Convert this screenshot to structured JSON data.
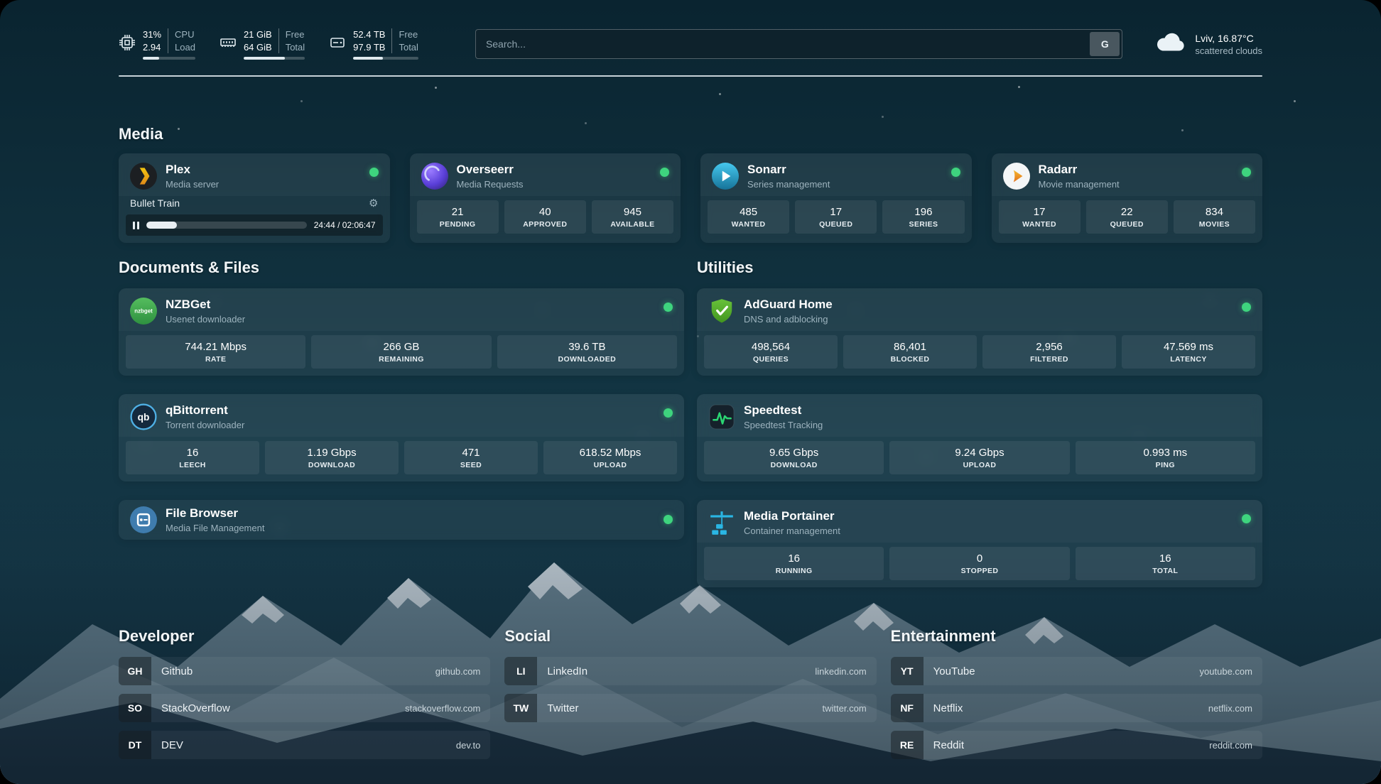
{
  "colors": {
    "status_green": "#3ed47e",
    "plex_orange": "#e5a00d",
    "overseerr_purple": "#5a3fd8",
    "sonarr_blue": "#35b5e0",
    "radarr_orange": "#e2711d",
    "nzbget_green": "#3fae4a",
    "qbittorrent_blue": "#4fb0e5",
    "adguard_green": "#68c23a",
    "speedtest_green": "#2bd673",
    "portainer_blue": "#2ab6e4"
  },
  "icons": {
    "topbar": [
      "cpu-icon",
      "ram-icon",
      "disk-icon",
      "cloud-icon"
    ],
    "apps": [
      "plex-icon",
      "overseerr-icon",
      "sonarr-icon",
      "radarr-icon",
      "nzbget-icon",
      "qbittorrent-icon",
      "filebrowser-icon",
      "adguard-icon",
      "speedtest-icon",
      "portainer-icon"
    ],
    "misc": [
      "gear-icon",
      "pause-icon",
      "status-dot"
    ]
  },
  "topbar": {
    "cpu": {
      "value_top": "31%",
      "value_bottom": "2.94",
      "label_top": "CPU",
      "label_bottom": "Load",
      "bar_percent": 31
    },
    "ram": {
      "value_top": "21 GiB",
      "value_bottom": "64 GiB",
      "label_top": "Free",
      "label_bottom": "Total",
      "bar_percent": 67
    },
    "disk": {
      "value_top": "52.4 TB",
      "value_bottom": "97.9 TB",
      "label_top": "Free",
      "label_bottom": "Total",
      "bar_percent": 46
    },
    "search": {
      "placeholder": "Search...",
      "engine_label": "G"
    },
    "weather": {
      "location": "Lviv, 16.87°C",
      "condition": "scattered clouds"
    }
  },
  "media": {
    "heading": "Media",
    "plex": {
      "title": "Plex",
      "subtitle": "Media server",
      "now_playing": "Bullet Train",
      "time": "24:44 / 02:06:47",
      "progress_percent": 19
    },
    "overseerr": {
      "title": "Overseerr",
      "subtitle": "Media Requests",
      "stats": [
        {
          "value": "21",
          "label": "PENDING"
        },
        {
          "value": "40",
          "label": "APPROVED"
        },
        {
          "value": "945",
          "label": "AVAILABLE"
        }
      ]
    },
    "sonarr": {
      "title": "Sonarr",
      "subtitle": "Series management",
      "stats": [
        {
          "value": "485",
          "label": "WANTED"
        },
        {
          "value": "17",
          "label": "QUEUED"
        },
        {
          "value": "196",
          "label": "SERIES"
        }
      ]
    },
    "radarr": {
      "title": "Radarr",
      "subtitle": "Movie management",
      "stats": [
        {
          "value": "17",
          "label": "WANTED"
        },
        {
          "value": "22",
          "label": "QUEUED"
        },
        {
          "value": "834",
          "label": "MOVIES"
        }
      ]
    }
  },
  "docs": {
    "heading": "Documents & Files",
    "nzbget": {
      "title": "NZBGet",
      "subtitle": "Usenet downloader",
      "stats": [
        {
          "value": "744.21 Mbps",
          "label": "RATE"
        },
        {
          "value": "266 GB",
          "label": "REMAINING"
        },
        {
          "value": "39.6 TB",
          "label": "DOWNLOADED"
        }
      ]
    },
    "qbittorrent": {
      "title": "qBittorrent",
      "subtitle": "Torrent downloader",
      "stats": [
        {
          "value": "16",
          "label": "LEECH"
        },
        {
          "value": "1.19 Gbps",
          "label": "DOWNLOAD"
        },
        {
          "value": "471",
          "label": "SEED"
        },
        {
          "value": "618.52 Mbps",
          "label": "UPLOAD"
        }
      ]
    },
    "filebrowser": {
      "title": "File Browser",
      "subtitle": "Media File Management"
    }
  },
  "utils": {
    "heading": "Utilities",
    "adguard": {
      "title": "AdGuard Home",
      "subtitle": "DNS and adblocking",
      "stats": [
        {
          "value": "498,564",
          "label": "QUERIES"
        },
        {
          "value": "86,401",
          "label": "BLOCKED"
        },
        {
          "value": "2,956",
          "label": "FILTERED"
        },
        {
          "value": "47.569 ms",
          "label": "LATENCY"
        }
      ]
    },
    "speedtest": {
      "title": "Speedtest",
      "subtitle": "Speedtest Tracking",
      "stats": [
        {
          "value": "9.65 Gbps",
          "label": "DOWNLOAD"
        },
        {
          "value": "9.24 Gbps",
          "label": "UPLOAD"
        },
        {
          "value": "0.993 ms",
          "label": "PING"
        }
      ]
    },
    "portainer": {
      "title": "Media Portainer",
      "subtitle": "Container management",
      "stats": [
        {
          "value": "16",
          "label": "RUNNING"
        },
        {
          "value": "0",
          "label": "STOPPED"
        },
        {
          "value": "16",
          "label": "TOTAL"
        }
      ]
    }
  },
  "bookmarks": {
    "developer": {
      "heading": "Developer",
      "items": [
        {
          "abbr": "GH",
          "name": "Github",
          "url": "github.com"
        },
        {
          "abbr": "SO",
          "name": "StackOverflow",
          "url": "stackoverflow.com"
        },
        {
          "abbr": "DT",
          "name": "DEV",
          "url": "dev.to"
        }
      ]
    },
    "social": {
      "heading": "Social",
      "items": [
        {
          "abbr": "LI",
          "name": "LinkedIn",
          "url": "linkedin.com"
        },
        {
          "abbr": "TW",
          "name": "Twitter",
          "url": "twitter.com"
        }
      ]
    },
    "entertainment": {
      "heading": "Entertainment",
      "items": [
        {
          "abbr": "YT",
          "name": "YouTube",
          "url": "youtube.com"
        },
        {
          "abbr": "NF",
          "name": "Netflix",
          "url": "netflix.com"
        },
        {
          "abbr": "RE",
          "name": "Reddit",
          "url": "reddit.com"
        }
      ]
    }
  }
}
